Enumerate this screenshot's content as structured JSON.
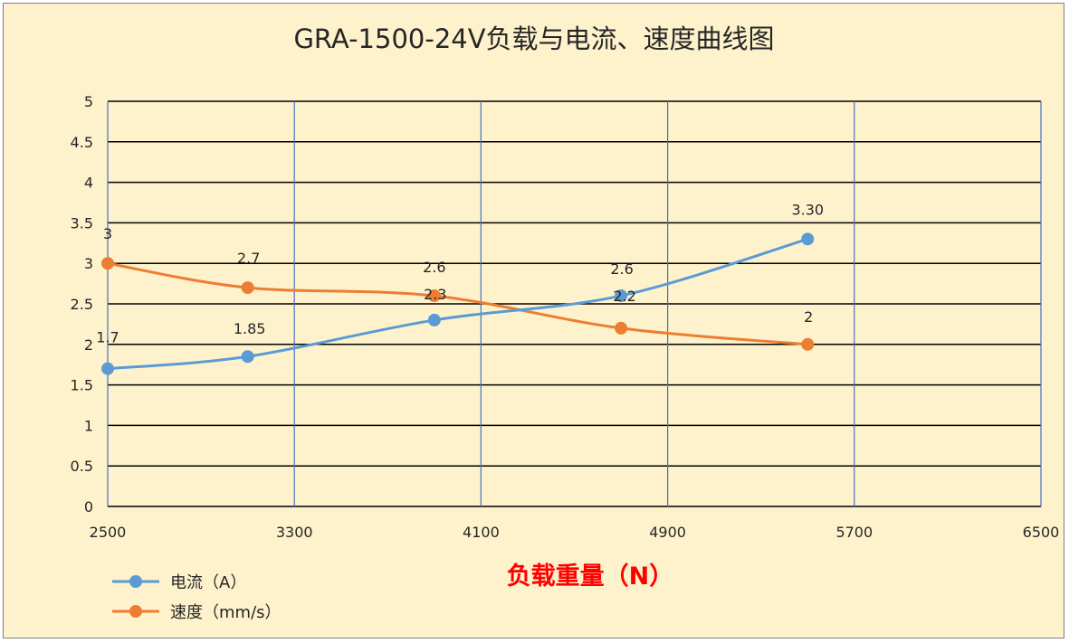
{
  "chart_data": {
    "type": "line",
    "title": "GRA-1500-24V负载与电流、速度曲线图",
    "xlabel": "负载重量（N）",
    "ylabel": "",
    "xlim": [
      2500,
      6500
    ],
    "ylim": [
      0,
      5
    ],
    "x_ticks": [
      "2500",
      "3300",
      "4100",
      "4900",
      "5700",
      "6500"
    ],
    "y_ticks": [
      "0",
      "0.5",
      "1",
      "1.5",
      "2",
      "2.5",
      "3",
      "3.5",
      "4",
      "4.5",
      "5"
    ],
    "grid": true,
    "smooth": true,
    "legend_position": "bottom-left",
    "series": [
      {
        "name": "电流（A）",
        "color": "#5b9bd5",
        "x": [
          2500,
          3100,
          3900,
          4700,
          5500
        ],
        "values": [
          1.7,
          1.85,
          2.3,
          2.6,
          3.3
        ],
        "labels": [
          "1.7",
          "1.85",
          "2.3",
          "2.6",
          "3.30"
        ]
      },
      {
        "name": "速度（mm/s）",
        "color": "#ed7d31",
        "x": [
          2500,
          3100,
          3900,
          4700,
          5500
        ],
        "values": [
          3,
          2.7,
          2.6,
          2.2,
          2
        ],
        "labels": [
          "3",
          "2.7",
          "2.6",
          "2.2",
          "2"
        ]
      }
    ]
  }
}
